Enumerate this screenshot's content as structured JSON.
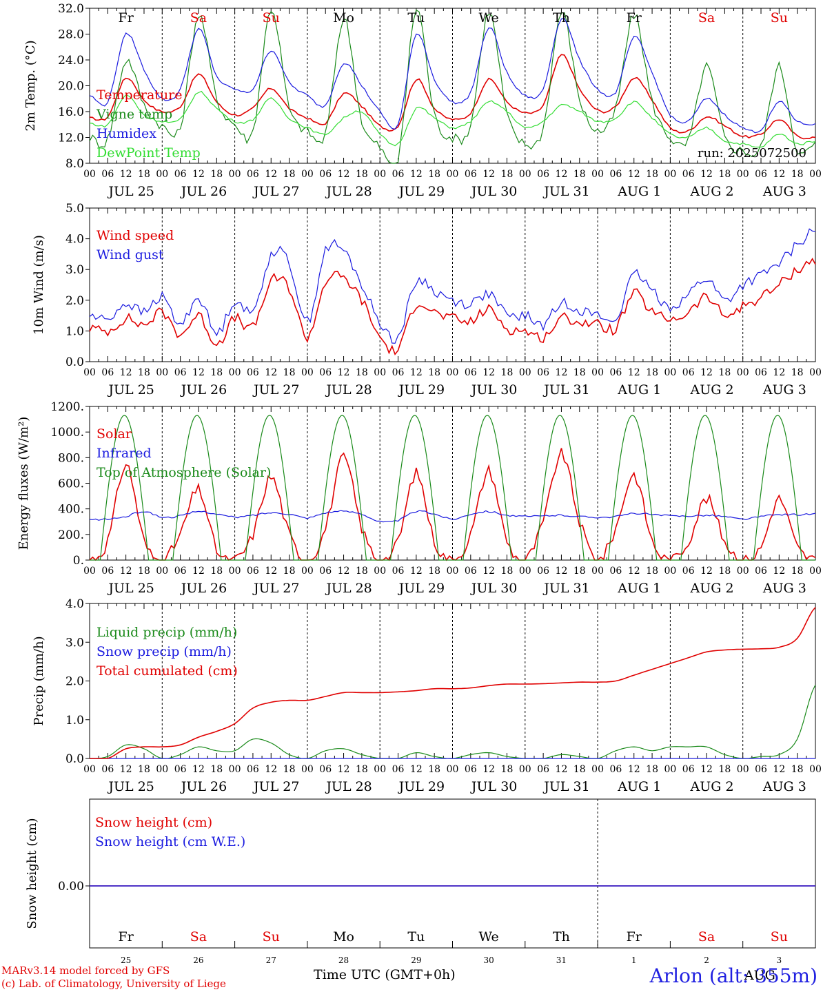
{
  "footer": {
    "model_line": "MARv3.14 model forced by GFS",
    "credit_line": "(c) Lab. of Climatology, University of Liege",
    "time_label": "Time UTC (GMT+0h)",
    "station": "Arlon (alt: 355m)"
  },
  "colors": {
    "red": "#e00000",
    "blue": "#1a1adf",
    "green": "#1a8a1a",
    "light_green": "#33dd33",
    "weekend": "#e00000",
    "weekday": "#000000"
  },
  "days": [
    {
      "date": "JUL 25",
      "abbr": "Fr",
      "day": "25",
      "weekend": false
    },
    {
      "date": "JUL 26",
      "abbr": "Sa",
      "day": "26",
      "weekend": true
    },
    {
      "date": "JUL 27",
      "abbr": "Su",
      "day": "27",
      "weekend": true
    },
    {
      "date": "JUL 28",
      "abbr": "Mo",
      "day": "28",
      "weekend": false
    },
    {
      "date": "JUL 29",
      "abbr": "Tu",
      "day": "29",
      "weekend": false
    },
    {
      "date": "JUL 30",
      "abbr": "We",
      "day": "30",
      "weekend": false
    },
    {
      "date": "JUL 31",
      "abbr": "Th",
      "day": "31",
      "weekend": false
    },
    {
      "date": "AUG  1",
      "abbr": "Fr",
      "day": "1",
      "weekend": false
    },
    {
      "date": "AUG  2",
      "abbr": "Sa",
      "day": "2",
      "weekend": true
    },
    {
      "date": "AUG  3",
      "abbr": "Su",
      "day": "3",
      "weekend": true
    }
  ],
  "hour_ticks": [
    "00",
    "06",
    "12",
    "18"
  ],
  "month_bottom": "AUG",
  "chart_data": [
    {
      "type": "line",
      "ylabel": "2m Temp. (°C)",
      "ylim": [
        8,
        32
      ],
      "yticks": [
        "8.0",
        "12.0",
        "16.0",
        "20.0",
        "24.0",
        "28.0",
        "32.0"
      ],
      "ytick_values": [
        8,
        12,
        16,
        20,
        24,
        28,
        32
      ],
      "run_label": "run: 2025072500",
      "x_hours": [
        0,
        6,
        12,
        18,
        24,
        30,
        36,
        42,
        48,
        54,
        60,
        66,
        72,
        78,
        84,
        90,
        96,
        102,
        108,
        114,
        120,
        126,
        132,
        138,
        144,
        150,
        156,
        162,
        168,
        174,
        180,
        186,
        192,
        198,
        204,
        210,
        216,
        222,
        228,
        234,
        240
      ],
      "series": [
        {
          "name": "Temperature",
          "color": "red",
          "values": [
            15.0,
            15.2,
            21.2,
            17.8,
            16.0,
            16.8,
            21.8,
            17.5,
            15.5,
            16.5,
            19.6,
            16.5,
            15.0,
            14.2,
            18.8,
            16.8,
            13.8,
            13.8,
            21.0,
            16.5,
            14.8,
            15.8,
            21.0,
            17.5,
            15.8,
            17.0,
            24.8,
            19.5,
            16.2,
            16.8,
            21.2,
            17.8,
            13.5,
            13.0,
            15.2,
            13.8,
            12.2,
            12.5,
            14.8,
            12.2,
            12.0
          ]
        },
        {
          "name": "Vigne temp",
          "color": "green",
          "values": [
            12.0,
            11.8,
            24.0,
            17.0,
            13.8,
            13.5,
            31.0,
            18.0,
            14.0,
            13.0,
            32.0,
            16.5,
            13.0,
            12.5,
            30.5,
            14.5,
            10.5,
            8.5,
            32.0,
            15.5,
            12.0,
            14.0,
            31.5,
            15.5,
            11.0,
            13.5,
            31.5,
            18.0,
            13.0,
            16.5,
            31.0,
            17.5,
            12.0,
            11.5,
            23.0,
            12.0,
            10.0,
            10.5,
            23.0,
            10.0,
            11.0
          ]
        },
        {
          "name": "Humidex",
          "color": "blue",
          "values": [
            18.5,
            17.5,
            28.0,
            22.5,
            18.0,
            19.5,
            28.8,
            21.5,
            19.5,
            19.5,
            25.5,
            20.5,
            18.5,
            17.0,
            23.5,
            20.0,
            16.0,
            14.0,
            28.0,
            21.0,
            17.5,
            19.0,
            29.0,
            22.0,
            18.5,
            19.5,
            30.5,
            24.0,
            19.5,
            19.0,
            27.5,
            22.0,
            15.5,
            14.5,
            18.0,
            15.5,
            13.5,
            13.2,
            17.5,
            14.5,
            14.0
          ]
        },
        {
          "name": "DewPoint Temp",
          "color": "light_green",
          "values": [
            14.2,
            14.0,
            18.5,
            15.5,
            14.5,
            14.8,
            19.0,
            16.5,
            14.5,
            14.8,
            18.0,
            15.0,
            13.5,
            12.5,
            15.0,
            16.0,
            12.5,
            11.0,
            16.5,
            15.0,
            13.5,
            14.5,
            17.5,
            16.0,
            13.5,
            14.5,
            17.0,
            16.0,
            14.5,
            15.0,
            17.5,
            15.0,
            12.5,
            12.0,
            13.5,
            11.5,
            11.0,
            10.5,
            12.5,
            11.0,
            11.5
          ]
        }
      ]
    },
    {
      "type": "line",
      "ylabel": "10m Wind (m/s)",
      "ylim": [
        0,
        5
      ],
      "yticks": [
        "0.0",
        "1.0",
        "2.0",
        "3.0",
        "4.0",
        "5.0"
      ],
      "ytick_values": [
        0,
        1,
        2,
        3,
        4,
        5
      ],
      "x_hours": [
        0,
        6,
        12,
        18,
        24,
        30,
        36,
        42,
        48,
        54,
        60,
        66,
        72,
        78,
        84,
        90,
        96,
        102,
        108,
        114,
        120,
        126,
        132,
        138,
        144,
        150,
        156,
        162,
        168,
        174,
        180,
        186,
        192,
        198,
        204,
        210,
        216,
        222,
        228,
        234,
        240
      ],
      "series": [
        {
          "name": "Wind speed",
          "color": "red",
          "values": [
            1.1,
            1.0,
            1.4,
            1.2,
            1.6,
            0.9,
            1.5,
            0.6,
            1.4,
            1.1,
            2.6,
            2.4,
            0.8,
            2.6,
            2.7,
            2.0,
            0.8,
            0.4,
            1.9,
            1.6,
            1.4,
            1.3,
            1.7,
            1.1,
            1.0,
            0.8,
            1.4,
            1.3,
            1.2,
            1.1,
            2.2,
            1.6,
            1.4,
            1.6,
            2.1,
            1.5,
            1.8,
            2.1,
            2.5,
            3.0,
            3.3
          ]
        },
        {
          "name": "Wind gust",
          "color": "blue",
          "values": [
            1.5,
            1.4,
            1.9,
            1.6,
            2.1,
            1.2,
            2.1,
            0.9,
            2.0,
            1.6,
            3.5,
            3.2,
            1.3,
            3.6,
            3.6,
            2.5,
            1.3,
            0.8,
            2.6,
            2.3,
            2.0,
            1.9,
            2.2,
            1.5,
            1.5,
            1.2,
            1.9,
            1.7,
            1.5,
            1.4,
            2.8,
            2.3,
            1.8,
            2.2,
            2.7,
            2.0,
            2.5,
            2.8,
            3.2,
            3.8,
            4.3
          ]
        }
      ]
    },
    {
      "type": "line",
      "ylabel": "Energy fluxes (W/m²)",
      "ylim": [
        0,
        1200
      ],
      "yticks": [
        "0.",
        "200.",
        "400.",
        "600.",
        "800.",
        "1000.",
        "1200."
      ],
      "ytick_values": [
        0,
        200,
        400,
        600,
        800,
        1000,
        1200
      ],
      "x_hours": [
        0,
        6,
        12,
        18,
        24,
        30,
        36,
        42,
        48,
        54,
        60,
        66,
        72,
        78,
        84,
        90,
        96,
        102,
        108,
        114,
        120,
        126,
        132,
        138,
        144,
        150,
        156,
        162,
        168,
        174,
        180,
        186,
        192,
        198,
        204,
        210,
        216,
        222,
        228,
        234,
        240
      ],
      "series": [
        {
          "name": "Solar",
          "color": "red",
          "values": [
            0,
            150,
            750,
            150,
            0,
            200,
            550,
            80,
            0,
            200,
            650,
            200,
            0,
            250,
            800,
            250,
            0,
            150,
            680,
            150,
            0,
            200,
            700,
            150,
            0,
            300,
            830,
            300,
            0,
            250,
            670,
            150,
            0,
            150,
            480,
            150,
            0,
            100,
            480,
            100,
            0
          ]
        },
        {
          "name": "Infrared",
          "color": "blue",
          "values": [
            315,
            320,
            340,
            380,
            335,
            345,
            380,
            360,
            335,
            350,
            370,
            360,
            330,
            370,
            380,
            360,
            300,
            310,
            380,
            360,
            320,
            360,
            380,
            350,
            340,
            345,
            350,
            340,
            335,
            340,
            365,
            355,
            345,
            345,
            350,
            340,
            320,
            340,
            355,
            355,
            360
          ]
        },
        {
          "name": "Top of Atmosphere (Solar)",
          "color": "green",
          "shape": "solar_arch",
          "peak": 1130,
          "sunrise_hour": 3.5,
          "sunset_hour": 19.5
        }
      ]
    },
    {
      "type": "line",
      "ylabel": "Precip (mm/h)",
      "ylim": [
        0,
        4
      ],
      "yticks": [
        "0.0",
        "1.0",
        "2.0",
        "3.0",
        "4.0"
      ],
      "ytick_values": [
        0,
        1,
        2,
        3,
        4
      ],
      "x_hours": [
        0,
        6,
        12,
        18,
        24,
        30,
        36,
        42,
        48,
        54,
        60,
        66,
        72,
        78,
        84,
        90,
        96,
        102,
        108,
        114,
        120,
        126,
        132,
        138,
        144,
        150,
        156,
        162,
        168,
        174,
        180,
        186,
        192,
        198,
        204,
        210,
        216,
        222,
        228,
        234,
        240
      ],
      "series": [
        {
          "name": "Liquid precip (mm/h)",
          "color": "green",
          "values": [
            0.0,
            0.05,
            0.35,
            0.25,
            0.0,
            0.1,
            0.3,
            0.2,
            0.2,
            0.5,
            0.4,
            0.1,
            0.0,
            0.2,
            0.25,
            0.1,
            0.0,
            0.0,
            0.15,
            0.05,
            0.0,
            0.1,
            0.15,
            0.05,
            0.0,
            0.0,
            0.1,
            0.05,
            0.0,
            0.2,
            0.3,
            0.2,
            0.3,
            0.3,
            0.3,
            0.1,
            0.0,
            0.05,
            0.1,
            0.5,
            1.9
          ]
        },
        {
          "name": "Snow precip (mm/h)",
          "color": "blue",
          "values": [
            0,
            0,
            0,
            0,
            0,
            0,
            0,
            0,
            0,
            0,
            0,
            0,
            0,
            0,
            0,
            0,
            0,
            0,
            0,
            0,
            0,
            0,
            0,
            0,
            0,
            0,
            0,
            0,
            0,
            0,
            0,
            0,
            0,
            0,
            0,
            0,
            0,
            0,
            0,
            0,
            0
          ]
        },
        {
          "name": "Total cumulated (cm)",
          "color": "red",
          "values": [
            0.0,
            0.0,
            0.25,
            0.3,
            0.3,
            0.35,
            0.55,
            0.7,
            0.9,
            1.3,
            1.45,
            1.5,
            1.5,
            1.6,
            1.7,
            1.7,
            1.7,
            1.72,
            1.75,
            1.8,
            1.8,
            1.82,
            1.88,
            1.92,
            1.92,
            1.93,
            1.95,
            1.97,
            1.97,
            2.0,
            2.15,
            2.3,
            2.45,
            2.6,
            2.75,
            2.8,
            2.82,
            2.83,
            2.87,
            3.1,
            3.9
          ]
        }
      ]
    },
    {
      "type": "line",
      "ylabel": "Snow height (cm)",
      "yticks": [
        "0.00"
      ],
      "ytick_values": [
        0
      ],
      "series": [
        {
          "name": "Snow height (cm)",
          "color": "red",
          "values": [
            0,
            0
          ]
        },
        {
          "name": "Snow height (cm W.E.)",
          "color": "blue",
          "values": [
            0,
            0
          ]
        }
      ]
    }
  ]
}
